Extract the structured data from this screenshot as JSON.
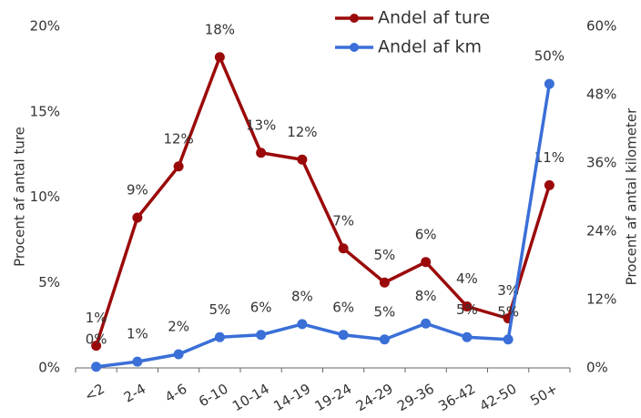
{
  "chart_data": {
    "type": "line",
    "categories": [
      "<2",
      "2-4",
      "4-6",
      "6-10",
      "10-14",
      "14-19",
      "19-24",
      "24-29",
      "29-36",
      "36-42",
      "42-50",
      "50+"
    ],
    "series": [
      {
        "name": "Andel af ture",
        "color": "#9b0a0a",
        "axis": "y",
        "values": [
          1.3,
          8.8,
          11.8,
          18.2,
          12.6,
          12.2,
          7.0,
          5.0,
          6.2,
          3.6,
          2.9,
          10.7
        ],
        "value_labels": [
          "1%",
          "9%",
          "12%",
          "18%",
          "13%",
          "12%",
          "7%",
          "5%",
          "6%",
          "4%",
          "3%",
          "11%"
        ]
      },
      {
        "name": "Andel af km",
        "color": "#3a6fd8",
        "axis": "y2",
        "values": [
          0.2,
          1.1,
          2.4,
          5.4,
          5.8,
          7.7,
          5.8,
          5.0,
          7.8,
          5.4,
          5.0,
          49.9
        ],
        "value_labels": [
          "0%",
          "1%",
          "2%",
          "5%",
          "6%",
          "8%",
          "6%",
          "5%",
          "8%",
          "5%",
          "5%",
          "50%"
        ]
      }
    ],
    "ylabel": "Procent af antal ture",
    "y2label": "Procent af antal kilometer",
    "ylim": [
      0,
      20
    ],
    "yticks": [
      {
        "value": 0,
        "label": "0%"
      },
      {
        "value": 5,
        "label": "5%"
      },
      {
        "value": 10,
        "label": "10%"
      },
      {
        "value": 15,
        "label": "15%"
      },
      {
        "value": 20,
        "label": "20%"
      }
    ],
    "y2lim": [
      0,
      60
    ],
    "y2ticks": [
      {
        "value": 0,
        "label": "0%"
      },
      {
        "value": 12,
        "label": "12%"
      },
      {
        "value": 24,
        "label": "24%"
      },
      {
        "value": 36,
        "label": "36%"
      },
      {
        "value": 48,
        "label": "48%"
      },
      {
        "value": 60,
        "label": "60%"
      }
    ],
    "grid": false,
    "legend": "top"
  }
}
